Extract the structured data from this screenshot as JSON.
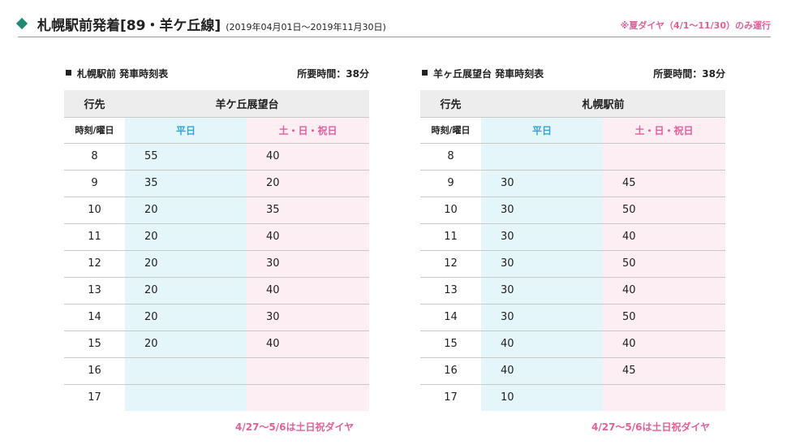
{
  "header": {
    "title": "札幌駅前発着[89・羊ケ丘線]",
    "period": "(2019年04月01日～2019年11月30日)",
    "note": "※夏ダイヤ（4/1～11/30）のみ運行"
  },
  "tables": [
    {
      "title": "札幌駅前 発車時刻表",
      "duration": "所要時間：38分",
      "dest_label": "行先",
      "destination": "羊ケ丘展望台",
      "time_label": "時刻/曜日",
      "weekday_label": "平日",
      "holiday_label": "土・日・祝日",
      "rows": [
        {
          "hour": "8",
          "weekday": "55",
          "holiday": "40"
        },
        {
          "hour": "9",
          "weekday": "35",
          "holiday": "20"
        },
        {
          "hour": "10",
          "weekday": "20",
          "holiday": "35"
        },
        {
          "hour": "11",
          "weekday": "20",
          "holiday": "40"
        },
        {
          "hour": "12",
          "weekday": "20",
          "holiday": "30"
        },
        {
          "hour": "13",
          "weekday": "20",
          "holiday": "40"
        },
        {
          "hour": "14",
          "weekday": "20",
          "holiday": "30"
        },
        {
          "hour": "15",
          "weekday": "20",
          "holiday": "40"
        },
        {
          "hour": "16",
          "weekday": "",
          "holiday": ""
        },
        {
          "hour": "17",
          "weekday": "",
          "holiday": ""
        }
      ],
      "footnote": "4/27～5/6は土日祝ダイヤ"
    },
    {
      "title": "羊ヶ丘展望台 発車時刻表",
      "duration": "所要時間：38分",
      "dest_label": "行先",
      "destination": "札幌駅前",
      "time_label": "時刻/曜日",
      "weekday_label": "平日",
      "holiday_label": "土・日・祝日",
      "rows": [
        {
          "hour": "8",
          "weekday": "",
          "holiday": ""
        },
        {
          "hour": "9",
          "weekday": "30",
          "holiday": "45"
        },
        {
          "hour": "10",
          "weekday": "30",
          "holiday": "50"
        },
        {
          "hour": "11",
          "weekday": "30",
          "holiday": "40"
        },
        {
          "hour": "12",
          "weekday": "30",
          "holiday": "50"
        },
        {
          "hour": "13",
          "weekday": "30",
          "holiday": "40"
        },
        {
          "hour": "14",
          "weekday": "30",
          "holiday": "50"
        },
        {
          "hour": "15",
          "weekday": "40",
          "holiday": "40"
        },
        {
          "hour": "16",
          "weekday": "40",
          "holiday": "45"
        },
        {
          "hour": "17",
          "weekday": "10",
          "holiday": ""
        }
      ],
      "footnote": "4/27～5/6は土日祝ダイヤ"
    }
  ],
  "colors": {
    "accent_green": "#1f8a70",
    "weekday_blue": "#2da6d8",
    "holiday_pink": "#e0609a",
    "weekday_bg": "#e4f6fa",
    "holiday_bg": "#fdeef4"
  }
}
